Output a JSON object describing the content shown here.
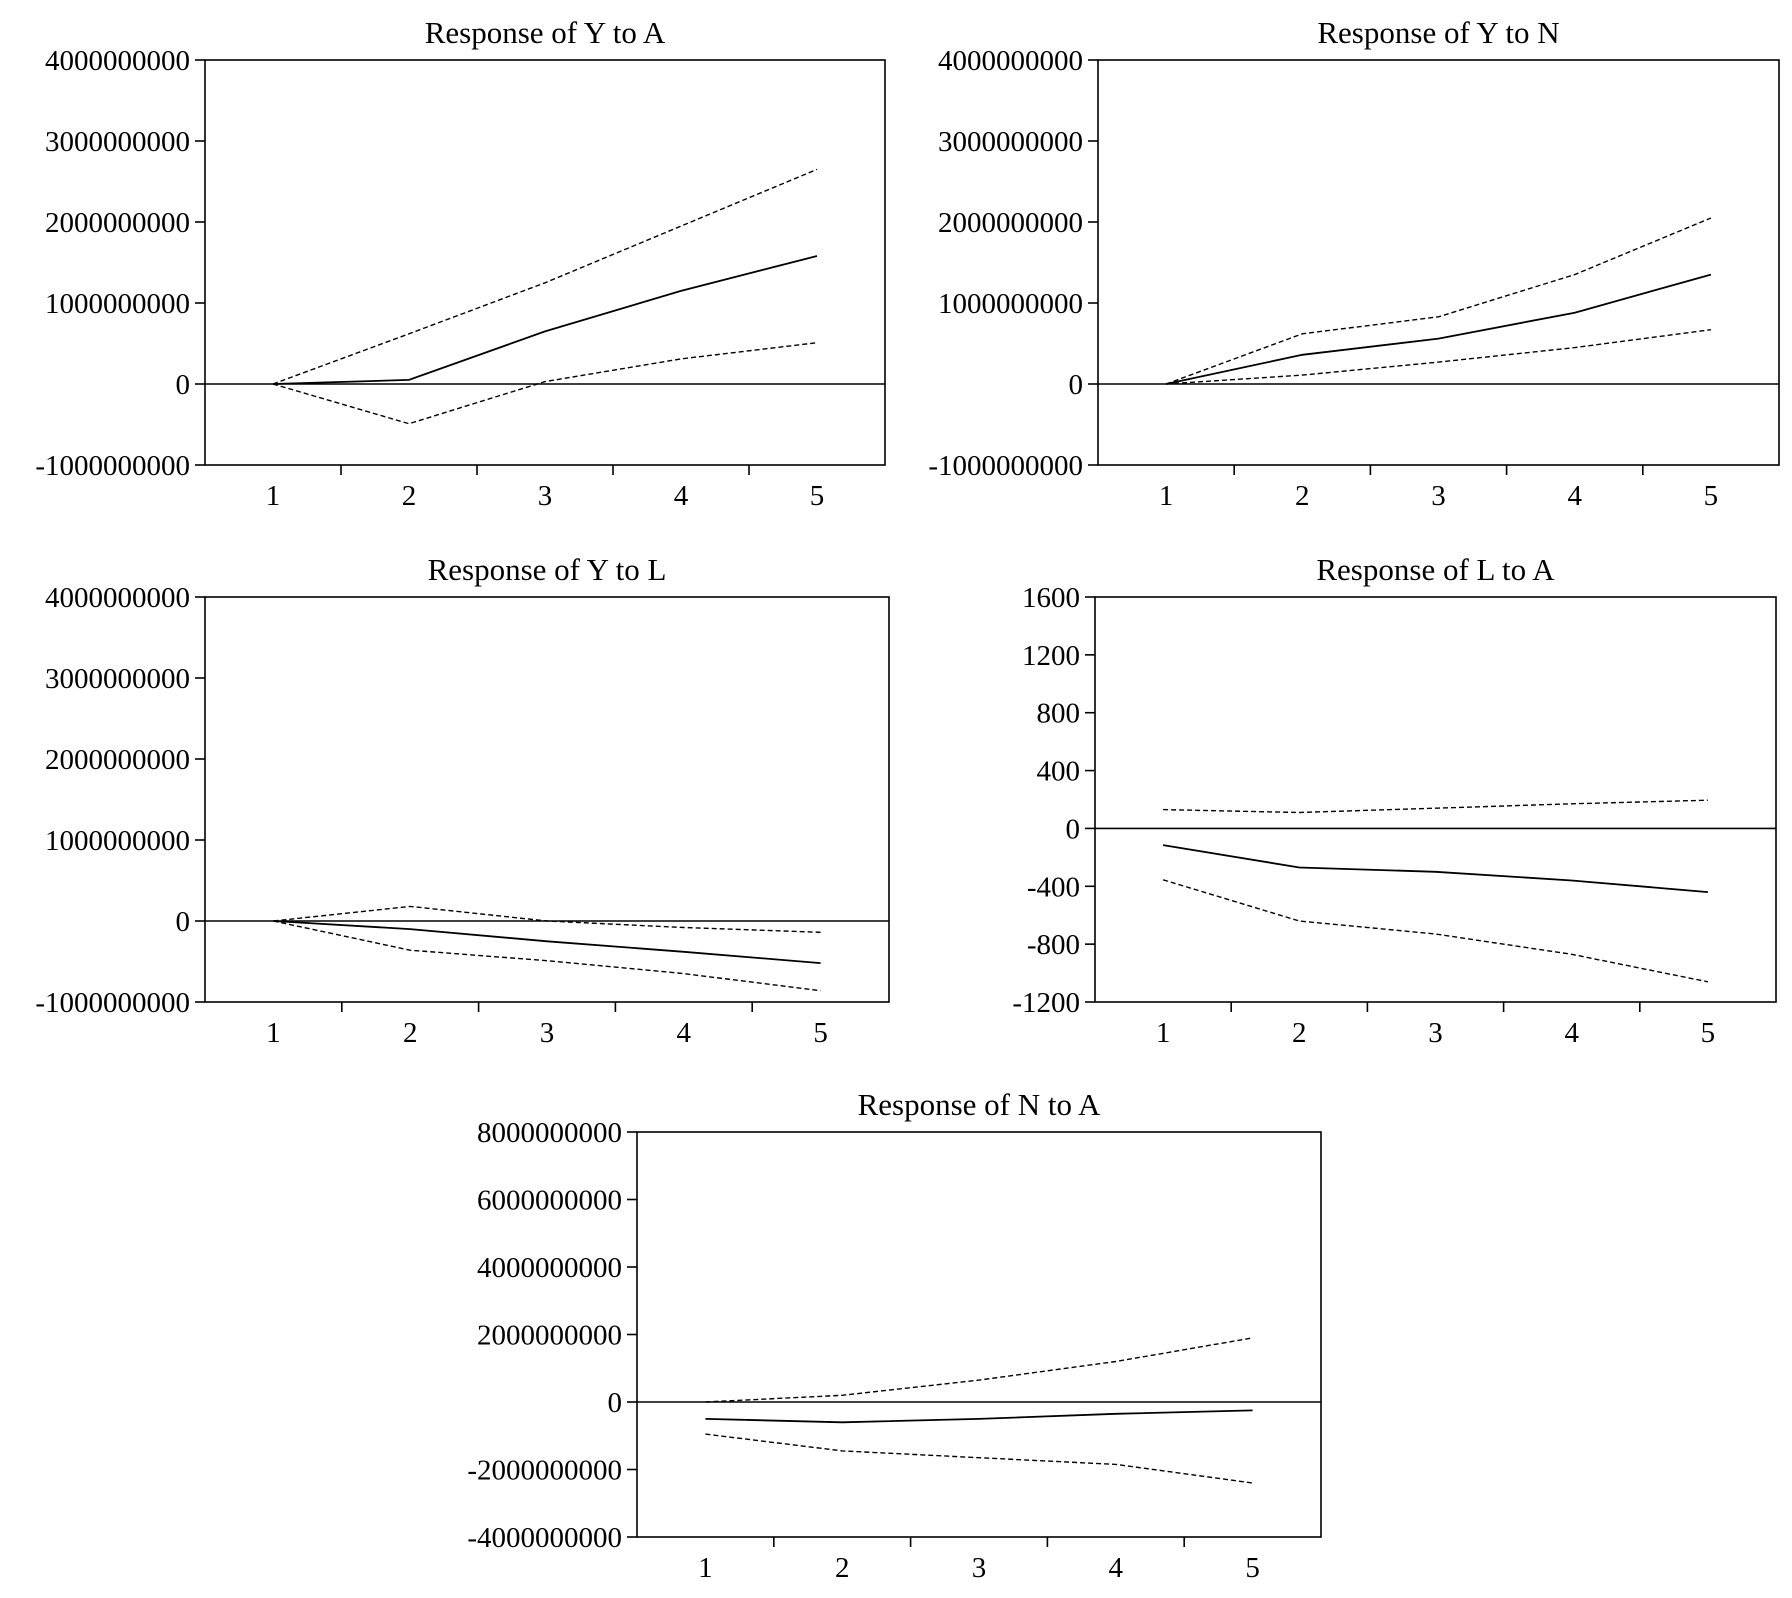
{
  "chart_data": [
    {
      "type": "line",
      "title": "Response of Y to A",
      "x": [
        1,
        2,
        3,
        4,
        5
      ],
      "ylim": [
        -1000000000,
        4000000000
      ],
      "yticks": [
        4000000000,
        3000000000,
        2000000000,
        1000000000,
        0,
        -1000000000
      ],
      "ytick_labels": [
        "4000000000",
        "3000000000",
        "2000000000",
        "1000000000",
        "0",
        "-1000000000"
      ],
      "xtick_labels": [
        "1",
        "2",
        "3",
        "4",
        "5"
      ],
      "series": [
        {
          "style": "solid",
          "values": [
            0,
            50000000,
            650000000,
            1150000000,
            1580000000
          ]
        },
        {
          "style": "dashed",
          "values": [
            0,
            620000000,
            1250000000,
            1950000000,
            2650000000
          ]
        },
        {
          "style": "dashed",
          "values": [
            0,
            -490000000,
            30000000,
            310000000,
            510000000
          ]
        }
      ]
    },
    {
      "type": "line",
      "title": "Response of Y to N",
      "x": [
        1,
        2,
        3,
        4,
        5
      ],
      "ylim": [
        -1000000000,
        4000000000
      ],
      "yticks": [
        4000000000,
        3000000000,
        2000000000,
        1000000000,
        0,
        -1000000000
      ],
      "ytick_labels": [
        "4000000000",
        "3000000000",
        "2000000000",
        "1000000000",
        "0",
        "-1000000000"
      ],
      "xtick_labels": [
        "1",
        "2",
        "3",
        "4",
        "5"
      ],
      "series": [
        {
          "style": "solid",
          "values": [
            0,
            360000000,
            560000000,
            880000000,
            1350000000
          ]
        },
        {
          "style": "dashed",
          "values": [
            0,
            620000000,
            830000000,
            1350000000,
            2050000000
          ]
        },
        {
          "style": "dashed",
          "values": [
            0,
            110000000,
            270000000,
            450000000,
            670000000
          ]
        }
      ]
    },
    {
      "type": "line",
      "title": "Response of Y to L",
      "x": [
        1,
        2,
        3,
        4,
        5
      ],
      "ylim": [
        -1000000000,
        4000000000
      ],
      "yticks": [
        4000000000,
        3000000000,
        2000000000,
        1000000000,
        0,
        -1000000000
      ],
      "ytick_labels": [
        "4000000000",
        "3000000000",
        "2000000000",
        "1000000000",
        "0",
        "-1000000000"
      ],
      "xtick_labels": [
        "1",
        "2",
        "3",
        "4",
        "5"
      ],
      "series": [
        {
          "style": "solid",
          "values": [
            0,
            -100000000,
            -250000000,
            -380000000,
            -520000000
          ]
        },
        {
          "style": "dashed",
          "values": [
            0,
            180000000,
            0,
            -80000000,
            -140000000
          ]
        },
        {
          "style": "dashed",
          "values": [
            0,
            -360000000,
            -490000000,
            -650000000,
            -860000000
          ]
        }
      ]
    },
    {
      "type": "line",
      "title": "Response of L to A",
      "x": [
        1,
        2,
        3,
        4,
        5
      ],
      "ylim": [
        -1200,
        1600
      ],
      "yticks": [
        1600,
        1200,
        800,
        400,
        0,
        -400,
        -800,
        -1200
      ],
      "ytick_labels": [
        "1600",
        "1200",
        "800",
        "400",
        "0",
        "-400",
        "-800",
        "-1200"
      ],
      "xtick_labels": [
        "1",
        "2",
        "3",
        "4",
        "5"
      ],
      "series": [
        {
          "style": "solid",
          "values": [
            -115,
            -270,
            -300,
            -360,
            -440
          ]
        },
        {
          "style": "dashed",
          "values": [
            130,
            110,
            140,
            170,
            195
          ]
        },
        {
          "style": "dashed",
          "values": [
            -355,
            -640,
            -730,
            -870,
            -1060
          ]
        }
      ]
    },
    {
      "type": "line",
      "title": "Response of N to A",
      "x": [
        1,
        2,
        3,
        4,
        5
      ],
      "ylim": [
        -4000000000,
        8000000000
      ],
      "yticks": [
        8000000000,
        6000000000,
        4000000000,
        2000000000,
        0,
        -2000000000,
        -4000000000
      ],
      "ytick_labels": [
        "8000000000",
        "6000000000",
        "4000000000",
        "2000000000",
        "0",
        "-2000000000",
        "-4000000000"
      ],
      "xtick_labels": [
        "1",
        "2",
        "3",
        "4",
        "5"
      ],
      "series": [
        {
          "style": "solid",
          "values": [
            -500000000,
            -600000000,
            -500000000,
            -350000000,
            -250000000
          ]
        },
        {
          "style": "dashed",
          "values": [
            0,
            200000000,
            650000000,
            1200000000,
            1900000000
          ]
        },
        {
          "style": "dashed",
          "values": [
            -950000000,
            -1450000000,
            -1650000000,
            -1850000000,
            -2400000000
          ]
        }
      ]
    }
  ]
}
